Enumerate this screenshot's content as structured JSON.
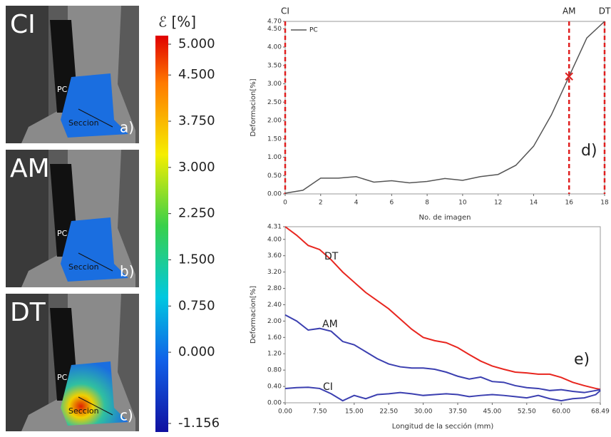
{
  "panels": [
    {
      "label": "CI",
      "point": "PC",
      "section": "Seccion",
      "tag": "a)"
    },
    {
      "label": "AM",
      "point": "PC",
      "section": "Seccion",
      "tag": "b)"
    },
    {
      "label": "DT",
      "point": "PC",
      "section": "Seccion",
      "tag": "c)"
    }
  ],
  "colorbar": {
    "label": "ℰ [%]",
    "lim": [
      -1.156,
      5
    ],
    "ticks": [
      {
        "value": 5,
        "label": "5.000"
      },
      {
        "value": 4.5,
        "label": "4.500"
      },
      {
        "value": 3.75,
        "label": "3.750"
      },
      {
        "value": 3,
        "label": "3.000"
      },
      {
        "value": 2.25,
        "label": "2.250"
      },
      {
        "value": 1.5,
        "label": "1.500"
      },
      {
        "value": 0.75,
        "label": "0.750"
      },
      {
        "value": 0,
        "label": "0.000"
      },
      {
        "value": -1.156,
        "label": "-1.156"
      }
    ]
  },
  "chart_data": [
    {
      "type": "line",
      "x_label": "No. de imagen",
      "y_label": "Deformacion[%]",
      "annotation": "d)",
      "x": [
        0,
        1,
        2,
        3,
        4,
        5,
        6,
        7,
        8,
        9,
        10,
        11,
        12,
        13,
        14,
        15,
        16,
        17,
        18
      ],
      "series": [
        {
          "name": "PC",
          "color": "#555555",
          "values": [
            0.02,
            0.1,
            0.43,
            0.43,
            0.47,
            0.32,
            0.36,
            0.3,
            0.34,
            0.42,
            0.37,
            0.47,
            0.53,
            0.78,
            1.3,
            2.15,
            3.2,
            4.25,
            4.7
          ]
        }
      ],
      "xlim": [
        0,
        18
      ],
      "xticks": [
        0,
        2,
        4,
        6,
        8,
        10,
        12,
        14,
        16,
        18
      ],
      "ylim": [
        0,
        4.7
      ],
      "yticks": [
        {
          "value": 0,
          "label": "0.00"
        },
        {
          "value": 0.5,
          "label": "0.50"
        },
        {
          "value": 1,
          "label": "1.00"
        },
        {
          "value": 1.5,
          "label": "1.50"
        },
        {
          "value": 2,
          "label": "2.00"
        },
        {
          "value": 2.5,
          "label": "2.50"
        },
        {
          "value": 3,
          "label": "3.00"
        },
        {
          "value": 3.5,
          "label": "3.50"
        },
        {
          "value": 4,
          "label": "4.00"
        },
        {
          "value": 4.5,
          "label": "4.50"
        },
        {
          "value": 4.7,
          "label": "4.70"
        }
      ],
      "markers": [
        {
          "x": 0,
          "label": "CI"
        },
        {
          "x": 16,
          "label": "AM"
        },
        {
          "x": 18,
          "label": "DT"
        }
      ],
      "marker_color": "#e02020",
      "highlight": {
        "x": 16,
        "y": 3.2
      },
      "legend": "top-left"
    },
    {
      "type": "line",
      "x_label": "Longitud de la sección (mm)",
      "y_label": "Deformacion[%]",
      "annotation": "e)",
      "x": [
        0,
        2.5,
        5,
        7.5,
        10,
        12.5,
        15,
        17.5,
        20,
        22.5,
        25,
        27.5,
        30,
        32.5,
        35,
        37.5,
        40,
        42.5,
        45,
        47.5,
        50,
        52.5,
        55,
        57.5,
        60,
        62.5,
        65,
        67.5,
        68.49
      ],
      "series": [
        {
          "name": "DT",
          "color": "#e8261f",
          "values": [
            4.31,
            4.1,
            3.85,
            3.75,
            3.5,
            3.2,
            2.95,
            2.7,
            2.5,
            2.3,
            2.05,
            1.8,
            1.6,
            1.52,
            1.47,
            1.35,
            1.18,
            1.02,
            0.9,
            0.82,
            0.75,
            0.73,
            0.7,
            0.7,
            0.62,
            0.5,
            0.42,
            0.35,
            0.33
          ]
        },
        {
          "name": "AM",
          "color": "#3b3fb0",
          "values": [
            2.15,
            2.0,
            1.78,
            1.82,
            1.75,
            1.5,
            1.42,
            1.25,
            1.08,
            0.95,
            0.88,
            0.85,
            0.85,
            0.82,
            0.75,
            0.65,
            0.58,
            0.63,
            0.52,
            0.5,
            0.42,
            0.37,
            0.35,
            0.3,
            0.32,
            0.28,
            0.25,
            0.3,
            0.32
          ]
        },
        {
          "name": "CI",
          "color": "#3b3fb0",
          "values": [
            0.35,
            0.37,
            0.38,
            0.35,
            0.22,
            0.05,
            0.18,
            0.1,
            0.2,
            0.22,
            0.25,
            0.22,
            0.18,
            0.2,
            0.22,
            0.2,
            0.15,
            0.18,
            0.2,
            0.18,
            0.15,
            0.12,
            0.18,
            0.1,
            0.05,
            0.1,
            0.12,
            0.2,
            0.3
          ]
        }
      ],
      "xlim": [
        0,
        68.49
      ],
      "xticks": [
        {
          "value": 0,
          "label": "0.00"
        },
        {
          "value": 7.5,
          "label": "7.50"
        },
        {
          "value": 15,
          "label": "15.00"
        },
        {
          "value": 22.5,
          "label": "22.50"
        },
        {
          "value": 30,
          "label": "30.00"
        },
        {
          "value": 37.5,
          "label": "37.50"
        },
        {
          "value": 45,
          "label": "45.00"
        },
        {
          "value": 52.5,
          "label": "52.50"
        },
        {
          "value": 60,
          "label": "60.00"
        },
        {
          "value": 68.49,
          "label": "68.49"
        }
      ],
      "ylim": [
        0,
        4.31
      ],
      "yticks": [
        {
          "value": 0,
          "label": "0.00"
        },
        {
          "value": 0.4,
          "label": "0.40"
        },
        {
          "value": 0.8,
          "label": "0.80"
        },
        {
          "value": 1.2,
          "label": "1.20"
        },
        {
          "value": 1.6,
          "label": "1.60"
        },
        {
          "value": 2,
          "label": "2.00"
        },
        {
          "value": 2.4,
          "label": "2.40"
        },
        {
          "value": 2.8,
          "label": "2.80"
        },
        {
          "value": 3.2,
          "label": "3.20"
        },
        {
          "value": 3.6,
          "label": "3.60"
        },
        {
          "value": 4,
          "label": "4.00"
        },
        {
          "value": 4.31,
          "label": "4.31"
        }
      ]
    }
  ]
}
